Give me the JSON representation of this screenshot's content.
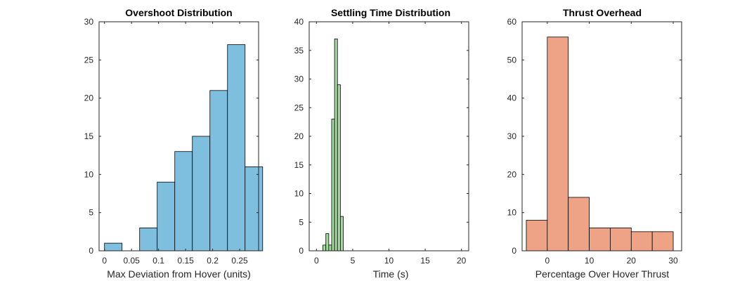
{
  "chart_data": [
    {
      "type": "bar",
      "title": "Overshoot Distribution",
      "xlabel": "Max Deviation from Hover (units)",
      "ylabel": "",
      "xlim": [
        -0.01,
        0.285
      ],
      "ylim": [
        0,
        30
      ],
      "xticks": [
        0,
        0.05,
        0.1,
        0.15,
        0.2,
        0.25
      ],
      "xtick_labels": [
        "0",
        "0.05",
        "0.1",
        "0.15",
        "0.2",
        "0.25"
      ],
      "yticks": [
        0,
        5,
        10,
        15,
        20,
        25,
        30
      ],
      "ytick_labels": [
        "0",
        "5",
        "10",
        "15",
        "20",
        "25",
        "30"
      ],
      "bin_edges": [
        0.0,
        0.0325,
        0.065,
        0.0975,
        0.13,
        0.1625,
        0.195,
        0.2275,
        0.26,
        0.2925
      ],
      "counts": [
        1,
        0,
        3,
        9,
        13,
        15,
        21,
        27,
        11
      ],
      "color": "#7EBFE0"
    },
    {
      "type": "bar",
      "title": "Settling Time Distribution",
      "xlabel": "Time (s)",
      "ylabel": "",
      "xlim": [
        -1,
        21
      ],
      "ylim": [
        0,
        40
      ],
      "xticks": [
        0,
        5,
        10,
        15,
        20
      ],
      "xtick_labels": [
        "0",
        "5",
        "10",
        "15",
        "20"
      ],
      "yticks": [
        0,
        5,
        10,
        15,
        20,
        25,
        30,
        35,
        40
      ],
      "ytick_labels": [
        "0",
        "5",
        "10",
        "15",
        "20",
        "25",
        "30",
        "35",
        "40"
      ],
      "bin_edges": [
        0.9,
        1.3,
        1.7,
        2.1,
        2.5,
        2.9,
        3.3,
        3.7
      ],
      "counts": [
        1,
        3,
        1,
        23,
        37,
        29,
        6
      ],
      "color": "#A6DBA0"
    },
    {
      "type": "bar",
      "title": "Thrust Overhead",
      "xlabel": "Percentage Over Hover Thrust",
      "ylabel": "",
      "xlim": [
        -6,
        32
      ],
      "ylim": [
        0,
        60
      ],
      "xticks": [
        0,
        10,
        20,
        30
      ],
      "xtick_labels": [
        "0",
        "10",
        "20",
        "30"
      ],
      "yticks": [
        0,
        10,
        20,
        30,
        40,
        50,
        60
      ],
      "ytick_labels": [
        "0",
        "10",
        "20",
        "30",
        "40",
        "50",
        "60"
      ],
      "bin_edges": [
        -5,
        0,
        5,
        10,
        15,
        20,
        25,
        30
      ],
      "counts": [
        8,
        56,
        14,
        6,
        6,
        5,
        5
      ],
      "color": "#EFA386"
    }
  ]
}
